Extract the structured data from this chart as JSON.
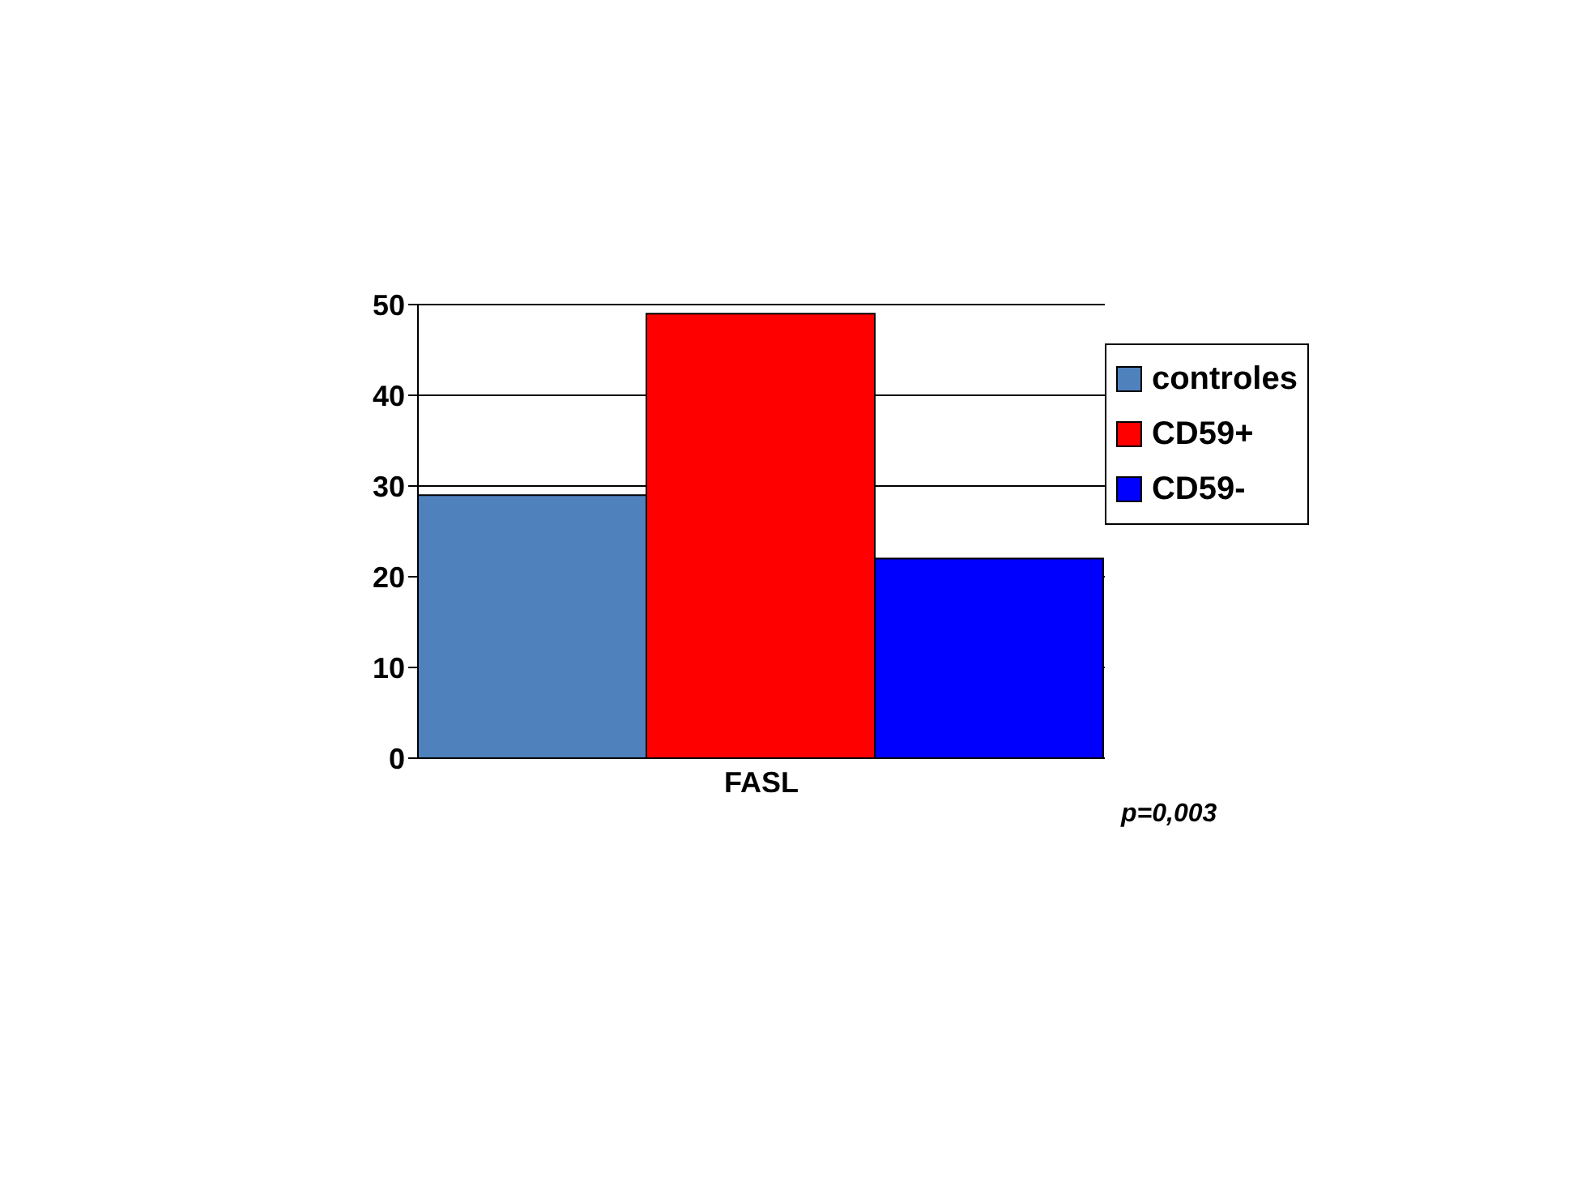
{
  "chart_data": {
    "type": "bar",
    "categories": [
      "FASL"
    ],
    "series": [
      {
        "name": "controles",
        "color": "#4f81bd",
        "values": [
          29
        ]
      },
      {
        "name": "CD59+",
        "color": "#ff0000",
        "values": [
          49
        ]
      },
      {
        "name": "CD59-",
        "color": "#0000ff",
        "values": [
          22
        ]
      }
    ],
    "ylim": [
      0,
      50
    ],
    "yticks": [
      0,
      10,
      20,
      30,
      40,
      50
    ],
    "grid": "y",
    "legend": "right",
    "annotations": [
      "p=0,003"
    ]
  }
}
